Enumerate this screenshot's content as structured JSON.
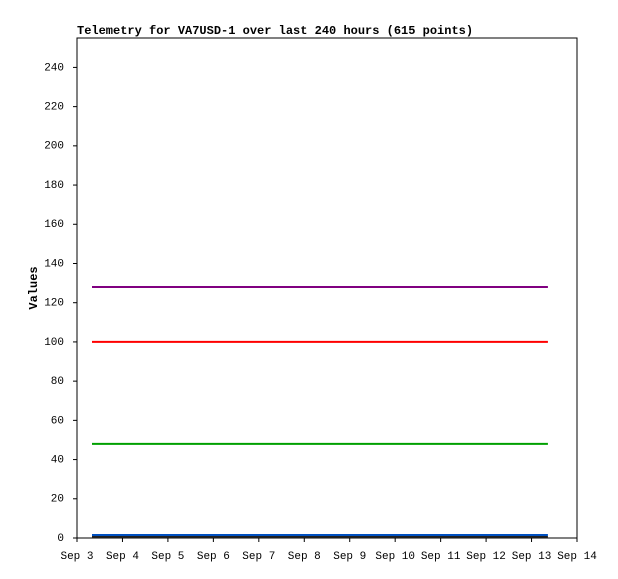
{
  "chart_data": {
    "type": "line",
    "title": "Telemetry for VA7USD-1 over last 240 hours (615 points)",
    "ylabel": "Values",
    "x": [
      3.33,
      13.36
    ],
    "series": [
      {
        "color": "#800080",
        "values": [
          128,
          128
        ]
      },
      {
        "color": "#ff0000",
        "values": [
          100,
          100
        ]
      },
      {
        "color": "#00a000",
        "values": [
          48,
          48
        ]
      },
      {
        "color": "#0050c0",
        "values": [
          1.5,
          1.5
        ]
      },
      {
        "color": "#202020",
        "values": [
          0.5,
          0.5
        ]
      }
    ],
    "xlim": [
      3,
      14
    ],
    "xticks": [
      {
        "value": 3,
        "label": "Sep 3"
      },
      {
        "value": 4,
        "label": "Sep 4"
      },
      {
        "value": 5,
        "label": "Sep 5"
      },
      {
        "value": 6,
        "label": "Sep 6"
      },
      {
        "value": 7,
        "label": "Sep 7"
      },
      {
        "value": 8,
        "label": "Sep 8"
      },
      {
        "value": 9,
        "label": "Sep 9"
      },
      {
        "value": 10,
        "label": "Sep 10"
      },
      {
        "value": 11,
        "label": "Sep 11"
      },
      {
        "value": 12,
        "label": "Sep 12"
      },
      {
        "value": 13,
        "label": "Sep 13"
      },
      {
        "value": 14,
        "label": "Sep 14"
      }
    ],
    "ylim": [
      0,
      255
    ],
    "yticks": [
      0,
      20,
      40,
      60,
      80,
      100,
      120,
      140,
      160,
      180,
      200,
      220,
      240
    ],
    "grid": false
  }
}
